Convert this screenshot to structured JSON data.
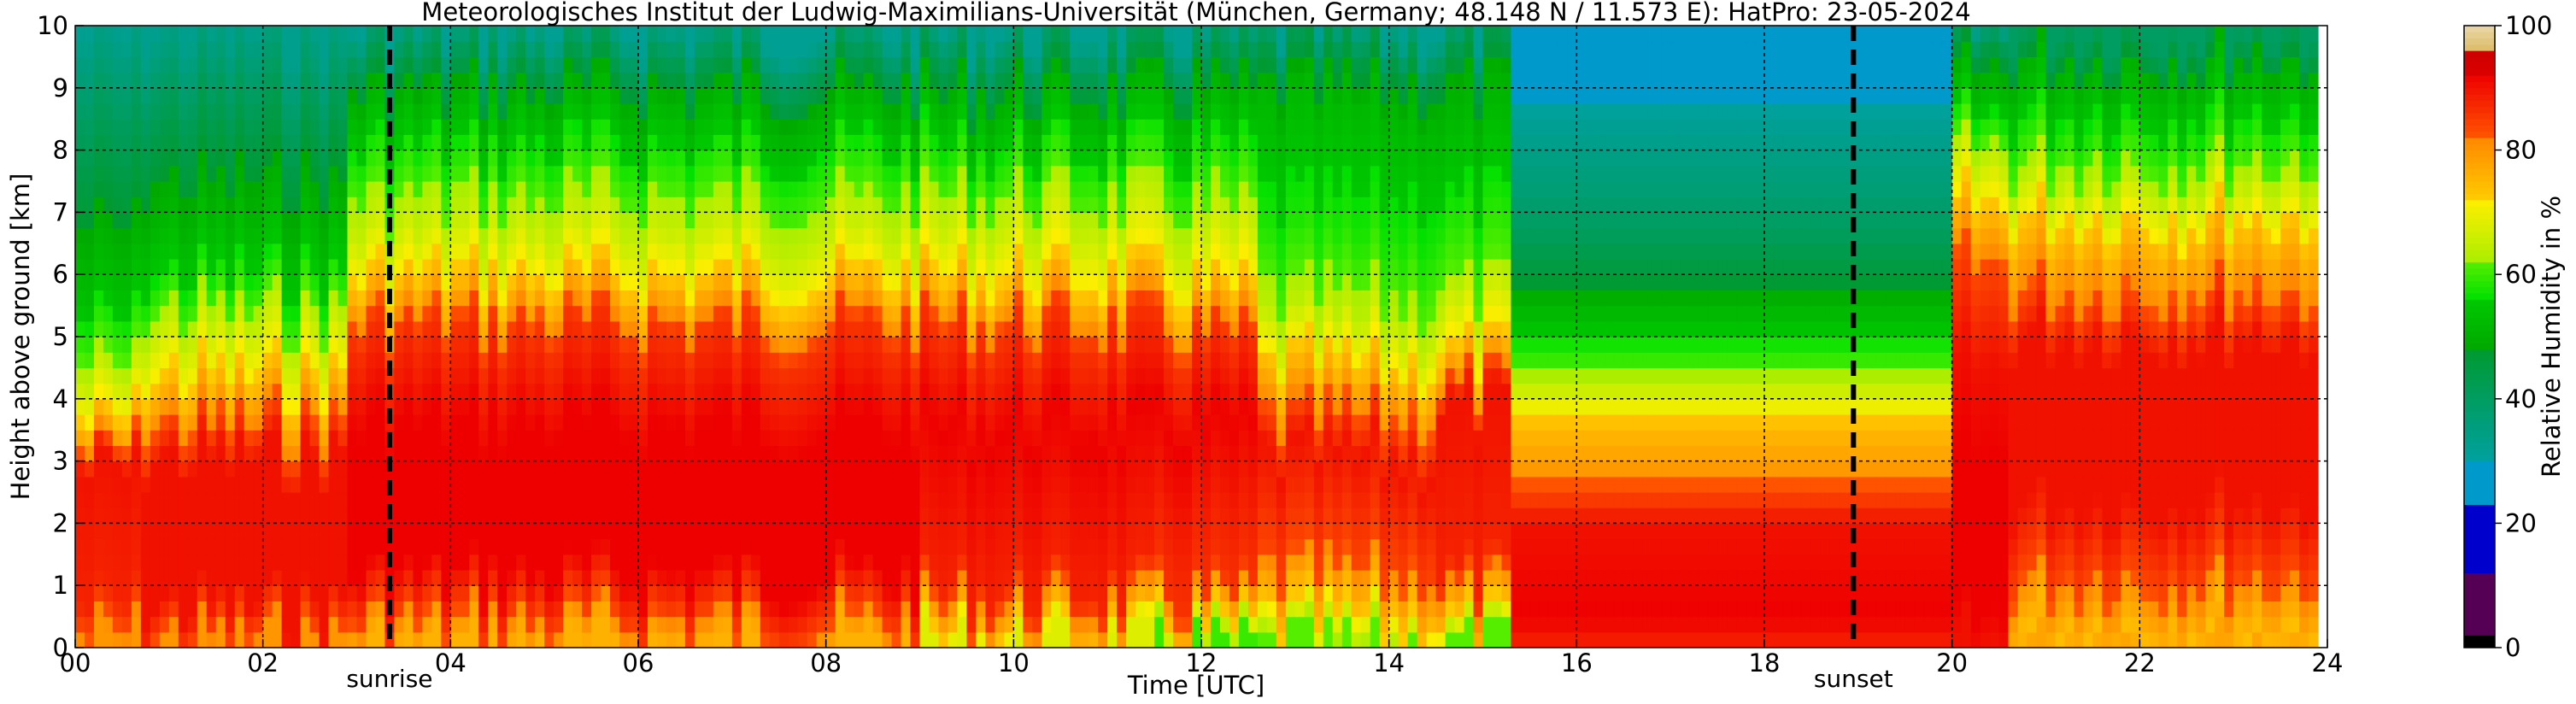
{
  "chart_data": {
    "type": "heatmap",
    "title": "Meteorologisches Institut der Ludwig-Maximilians-Universität (München, Germany; 48.148 N / 11.573 E):    HatPro: 23-05-2024",
    "xlabel": "Time [UTC]",
    "ylabel": "Height above ground [km]",
    "colorbar_label": "Relative Humidity in %",
    "xlim": [
      0,
      24
    ],
    "ylim": [
      0,
      10
    ],
    "x_ticks": [
      "00",
      "02",
      "04",
      "06",
      "08",
      "10",
      "12",
      "14",
      "16",
      "18",
      "20",
      "22",
      "24"
    ],
    "y_ticks": [
      "0",
      "1",
      "2",
      "3",
      "4",
      "5",
      "6",
      "7",
      "8",
      "9",
      "10"
    ],
    "colorbar_ticks": [
      "0",
      "20",
      "40",
      "60",
      "80",
      "100"
    ],
    "colorbar_range": [
      0,
      100
    ],
    "grid": true,
    "events": [
      {
        "label": "sunrise",
        "time": 3.35
      },
      {
        "label": "sunset",
        "time": 18.95
      }
    ],
    "colorscale": [
      {
        "from": 0,
        "to": 2,
        "color": "#000000"
      },
      {
        "from": 2,
        "to": 12,
        "color": "#550055"
      },
      {
        "from": 12,
        "to": 23,
        "color": "#0000cc"
      },
      {
        "from": 23,
        "to": 30,
        "color": "#0099cc"
      },
      {
        "from": 30,
        "to": 48,
        "color": "#00a0a0",
        "to_color": "#009a30"
      },
      {
        "from": 48,
        "to": 56,
        "color": "#00a800",
        "to_color": "#00c800"
      },
      {
        "from": 56,
        "to": 62,
        "color": "#00e000",
        "to_color": "#55ee00"
      },
      {
        "from": 62,
        "to": 72,
        "color": "#aaee00",
        "to_color": "#ffee00"
      },
      {
        "from": 72,
        "to": 82,
        "color": "#ffcc00",
        "to_color": "#ff8800"
      },
      {
        "from": 82,
        "to": 92,
        "color": "#ff5500",
        "to_color": "#ee0000"
      },
      {
        "from": 92,
        "to": 96,
        "color": "#dd0000",
        "to_color": "#cc0000"
      },
      {
        "from": 96,
        "to": 100,
        "color": "#ddbb66",
        "to_color": "#e8d8a8"
      }
    ],
    "profiles": [
      {
        "t_start": 0.0,
        "t_end": 0.7,
        "levels": [
          [
            0,
            80
          ],
          [
            0.7,
            88
          ],
          [
            2.8,
            90
          ],
          [
            3.5,
            74
          ],
          [
            4.3,
            64
          ],
          [
            5.5,
            54
          ],
          [
            8.5,
            40
          ],
          [
            10,
            32
          ]
        ]
      },
      {
        "t_start": 0.7,
        "t_end": 2.9,
        "levels": [
          [
            0,
            80
          ],
          [
            0.7,
            90
          ],
          [
            3.0,
            90
          ],
          [
            4.2,
            74
          ],
          [
            5.2,
            64
          ],
          [
            6.0,
            56
          ],
          [
            8.6,
            42
          ],
          [
            10,
            33
          ]
        ]
      },
      {
        "t_start": 2.9,
        "t_end": 9.0,
        "levels": [
          [
            0,
            76
          ],
          [
            0.5,
            84
          ],
          [
            1.2,
            92
          ],
          [
            3.5,
            92
          ],
          [
            5.0,
            86
          ],
          [
            5.8,
            74
          ],
          [
            6.6,
            66
          ],
          [
            7.8,
            58
          ],
          [
            8.8,
            50
          ],
          [
            9.4,
            42
          ],
          [
            10,
            32
          ]
        ]
      },
      {
        "t_start": 9.0,
        "t_end": 11.5,
        "levels": [
          [
            0,
            68
          ],
          [
            0.4,
            78
          ],
          [
            1.0,
            88
          ],
          [
            3.5,
            92
          ],
          [
            5.0,
            86
          ],
          [
            5.8,
            74
          ],
          [
            6.7,
            66
          ],
          [
            7.8,
            58
          ],
          [
            8.8,
            50
          ],
          [
            9.4,
            42
          ],
          [
            10,
            32
          ]
        ]
      },
      {
        "t_start": 11.5,
        "t_end": 12.6,
        "levels": [
          [
            0,
            60
          ],
          [
            0.3,
            72
          ],
          [
            0.9,
            86
          ],
          [
            3.5,
            92
          ],
          [
            4.8,
            86
          ],
          [
            5.6,
            74
          ],
          [
            6.5,
            66
          ],
          [
            7.7,
            58
          ],
          [
            8.8,
            50
          ],
          [
            9.4,
            42
          ],
          [
            10,
            32
          ]
        ]
      },
      {
        "t_start": 12.6,
        "t_end": 14.5,
        "levels": [
          [
            0,
            62
          ],
          [
            0.4,
            72
          ],
          [
            1.3,
            84
          ],
          [
            3.0,
            90
          ],
          [
            4.2,
            76
          ],
          [
            5.2,
            64
          ],
          [
            6.5,
            58
          ],
          [
            8.6,
            52
          ],
          [
            9.4,
            44
          ],
          [
            10,
            32
          ]
        ]
      },
      {
        "t_start": 14.5,
        "t_end": 15.3,
        "levels": [
          [
            0,
            62
          ],
          [
            0.4,
            74
          ],
          [
            1.2,
            88
          ],
          [
            3.8,
            90
          ],
          [
            4.6,
            74
          ],
          [
            5.8,
            62
          ],
          [
            7.2,
            56
          ],
          [
            8.8,
            50
          ],
          [
            9.4,
            44
          ],
          [
            10,
            32
          ]
        ]
      },
      {
        "t_start": 15.3,
        "t_end": 20.0,
        "levels": [
          [
            0,
            88
          ],
          [
            0.5,
            92
          ],
          [
            2.0,
            90
          ],
          [
            2.8,
            80
          ],
          [
            3.6,
            74
          ],
          [
            4.4,
            62
          ],
          [
            5.2,
            54
          ],
          [
            6.0,
            46
          ],
          [
            6.8,
            40
          ],
          [
            8.0,
            34
          ],
          [
            9.2,
            28
          ],
          [
            10,
            26
          ]
        ]
      },
      {
        "t_start": 20.0,
        "t_end": 20.6,
        "levels": [
          [
            0,
            90
          ],
          [
            0.5,
            92
          ],
          [
            3.0,
            92
          ],
          [
            4.5,
            90
          ],
          [
            6.0,
            84
          ],
          [
            7.5,
            68
          ],
          [
            8.5,
            56
          ],
          [
            9.5,
            46
          ],
          [
            10,
            34
          ]
        ]
      },
      {
        "t_start": 20.6,
        "t_end": 23.9,
        "levels": [
          [
            0,
            78
          ],
          [
            0.3,
            74
          ],
          [
            1.3,
            84
          ],
          [
            2.4,
            90
          ],
          [
            5.0,
            90
          ],
          [
            5.8,
            82
          ],
          [
            6.8,
            74
          ],
          [
            7.6,
            64
          ],
          [
            8.6,
            56
          ],
          [
            9.4,
            50
          ],
          [
            10,
            40
          ]
        ]
      }
    ]
  }
}
